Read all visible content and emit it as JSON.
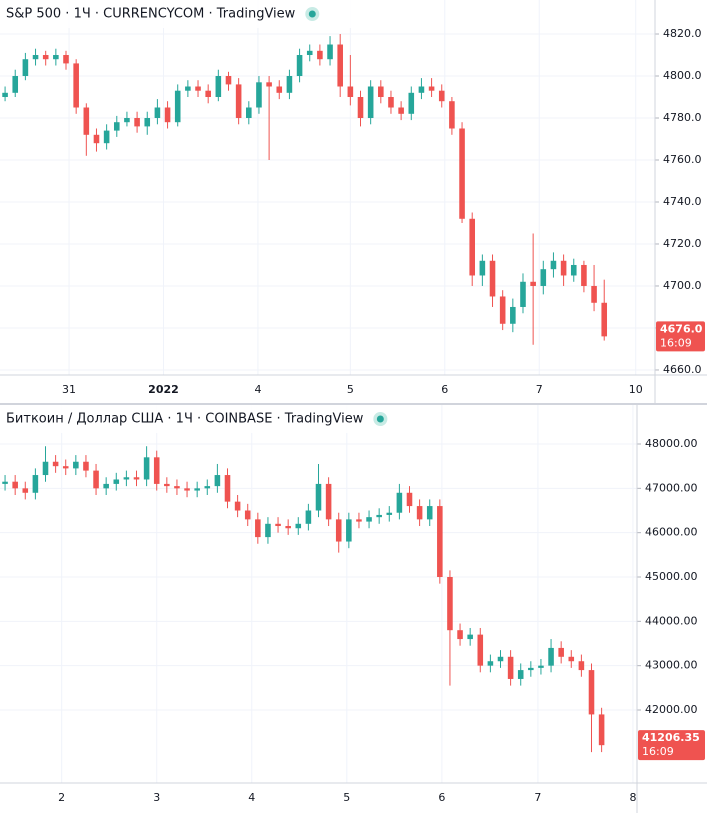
{
  "chart_data": [
    {
      "type": "candlestick",
      "title": "S&P 500 · 1Ч · CURRENCYCOM · TradingView",
      "up_color": "#26a69a",
      "down_color": "#ef5350",
      "grid": true,
      "xlim": [
        -0.5,
        64
      ],
      "xticks": [
        {
          "value": 6.3,
          "label": "31"
        },
        {
          "value": 15.6,
          "label": "2022"
        },
        {
          "value": 24.9,
          "label": "4"
        },
        {
          "value": 34.0,
          "label": "5"
        },
        {
          "value": 43.3,
          "label": "6"
        },
        {
          "value": 52.6,
          "label": "7"
        },
        {
          "value": 62.1,
          "label": "10"
        }
      ],
      "ylim": [
        4657.6,
        4836.2
      ],
      "yticks": [
        {
          "value": 4660,
          "label": "4660.0"
        },
        {
          "value": 4680,
          "label": "4680.0"
        },
        {
          "value": 4700,
          "label": "4700.0"
        },
        {
          "value": 4720,
          "label": "4720.0"
        },
        {
          "value": 4740,
          "label": "4740.0"
        },
        {
          "value": 4760,
          "label": "4760.0"
        },
        {
          "value": 4780,
          "label": "4780.0"
        },
        {
          "value": 4800,
          "label": "4800.0"
        },
        {
          "value": 4820,
          "label": "4820.0"
        }
      ],
      "open": [
        4790,
        4792,
        4800,
        4808,
        4810,
        4808,
        4810,
        4806,
        4785,
        4772,
        4768,
        4774,
        4778,
        4780,
        4776,
        4780,
        4785,
        4778,
        4793,
        4795,
        4793,
        4790,
        4800,
        4796,
        4780,
        4785,
        4797,
        4795,
        4792,
        4800,
        4810,
        4812,
        4808,
        4815,
        4795,
        4790,
        4780,
        4795,
        4790,
        4785,
        4782,
        4792,
        4795,
        4793,
        4788,
        4775,
        4732,
        4705,
        4712,
        4695,
        4682,
        4690,
        4702,
        4700,
        4708,
        4712,
        4705,
        4710,
        4700,
        4692
      ],
      "high": [
        4795,
        4803,
        4811,
        4813,
        4812,
        4813,
        4812,
        4808,
        4787,
        4775,
        4777,
        4781,
        4783,
        4783,
        4783,
        4789,
        4788,
        4796,
        4798,
        4798,
        4796,
        4803,
        4802,
        4799,
        4788,
        4800,
        4800,
        4798,
        4803,
        4813,
        4815,
        4815,
        4819,
        4820,
        4810,
        4793,
        4798,
        4798,
        4793,
        4788,
        4795,
        4799,
        4799,
        4796,
        4790,
        4778,
        4735,
        4715,
        4715,
        4698,
        4694,
        4706,
        4725,
        4712,
        4716,
        4715,
        4713,
        4712,
        4710,
        4703
      ],
      "low": [
        4788,
        4790,
        4798,
        4805,
        4805,
        4805,
        4803,
        4782,
        4762,
        4764,
        4765,
        4771,
        4776,
        4773,
        4772,
        4777,
        4775,
        4776,
        4790,
        4790,
        4787,
        4788,
        4793,
        4777,
        4777,
        4782,
        4760,
        4789,
        4789,
        4797,
        4807,
        4805,
        4805,
        4790,
        4786,
        4776,
        4777,
        4787,
        4782,
        4779,
        4779,
        4789,
        4790,
        4785,
        4772,
        4730,
        4700,
        4700,
        4690,
        4679,
        4678,
        4687,
        4672,
        4696,
        4704,
        4700,
        4702,
        4697,
        4688,
        4674
      ],
      "close": [
        4792,
        4800,
        4808,
        4810,
        4808,
        4810,
        4806,
        4785,
        4772,
        4768,
        4774,
        4778,
        4780,
        4776,
        4780,
        4785,
        4778,
        4793,
        4795,
        4793,
        4790,
        4800,
        4796,
        4780,
        4785,
        4797,
        4795,
        4792,
        4800,
        4810,
        4812,
        4808,
        4815,
        4795,
        4790,
        4780,
        4795,
        4790,
        4785,
        4782,
        4792,
        4795,
        4793,
        4788,
        4775,
        4732,
        4705,
        4712,
        4695,
        4682,
        4690,
        4702,
        4700,
        4708,
        4712,
        4705,
        4710,
        4700,
        4692,
        4676
      ],
      "last_price": {
        "value": 4676.0,
        "label": "4676.0"
      },
      "last_time": "16:09"
    },
    {
      "type": "candlestick",
      "title": "Биткоин / Доллар США · 1Ч · COINBASE · TradingView",
      "up_color": "#26a69a",
      "down_color": "#ef5350",
      "grid": true,
      "xlim": [
        -0.5,
        62.5
      ],
      "xticks": [
        {
          "value": 5.6,
          "label": "2"
        },
        {
          "value": 15.0,
          "label": "3"
        },
        {
          "value": 24.4,
          "label": "4"
        },
        {
          "value": 33.8,
          "label": "5"
        },
        {
          "value": 43.2,
          "label": "6"
        },
        {
          "value": 52.7,
          "label": "7"
        },
        {
          "value": 62.1,
          "label": "8"
        }
      ],
      "ylim": [
        40353,
        48880
      ],
      "yticks": [
        {
          "value": 42000,
          "label": "42000.00"
        },
        {
          "value": 43000,
          "label": "43000.00"
        },
        {
          "value": 44000,
          "label": "44000.00"
        },
        {
          "value": 45000,
          "label": "45000.00"
        },
        {
          "value": 46000,
          "label": "46000.00"
        },
        {
          "value": 47000,
          "label": "47000.00"
        },
        {
          "value": 48000,
          "label": "48000.00"
        }
      ],
      "open": [
        47100,
        47150,
        47000,
        46900,
        47300,
        47600,
        47500,
        47450,
        47600,
        47400,
        47000,
        47100,
        47200,
        47250,
        47200,
        47700,
        47100,
        47050,
        47000,
        46950,
        47000,
        47050,
        47300,
        46700,
        46500,
        46300,
        45900,
        46200,
        46150,
        46100,
        46200,
        46500,
        47100,
        46300,
        45800,
        46300,
        46250,
        46350,
        46400,
        46450,
        46900,
        46600,
        46300,
        46600,
        45000,
        43800,
        43600,
        43700,
        43000,
        43100,
        43200,
        42700,
        42900,
        42950,
        43000,
        43400,
        43200,
        43100,
        42900,
        41900
      ],
      "high": [
        47300,
        47300,
        47150,
        47450,
        47950,
        47750,
        47650,
        47750,
        47750,
        47550,
        47250,
        47350,
        47400,
        47400,
        47950,
        47850,
        47250,
        47200,
        47150,
        47150,
        47200,
        47550,
        47450,
        46850,
        46650,
        46450,
        46350,
        46350,
        46300,
        46350,
        46650,
        47550,
        47250,
        46450,
        46450,
        46450,
        46500,
        46550,
        46600,
        47100,
        47050,
        46750,
        46750,
        46750,
        45150,
        43950,
        43850,
        43850,
        43250,
        43350,
        43350,
        43050,
        43100,
        43150,
        43600,
        43550,
        43350,
        43250,
        43050,
        42050
      ],
      "low": [
        46950,
        46850,
        46750,
        46750,
        47150,
        47350,
        47300,
        47300,
        47250,
        46850,
        46850,
        46950,
        47050,
        47050,
        47050,
        46950,
        46900,
        46850,
        46800,
        46800,
        46850,
        46900,
        46550,
        46350,
        46150,
        45750,
        45750,
        46000,
        45950,
        45950,
        46050,
        46350,
        46150,
        45550,
        45650,
        46100,
        46100,
        46200,
        46250,
        46300,
        46450,
        46150,
        46150,
        44850,
        42550,
        43450,
        43450,
        42850,
        42850,
        42950,
        42550,
        42550,
        42750,
        42800,
        42850,
        43050,
        42950,
        42750,
        41050,
        41050
      ],
      "close": [
        47150,
        47000,
        46900,
        47300,
        47600,
        47500,
        47450,
        47600,
        47400,
        47000,
        47100,
        47200,
        47250,
        47200,
        47700,
        47100,
        47050,
        47000,
        46950,
        47000,
        47050,
        47300,
        46700,
        46500,
        46300,
        45900,
        46200,
        46150,
        46100,
        46200,
        46500,
        47100,
        46300,
        45800,
        46300,
        46250,
        46350,
        46400,
        46450,
        46900,
        46600,
        46300,
        46600,
        45000,
        43800,
        43600,
        43700,
        43000,
        43100,
        43200,
        42700,
        42900,
        42950,
        43000,
        43400,
        43200,
        43100,
        42900,
        41900,
        41206.35
      ],
      "last_price": {
        "value": 41206.35,
        "label": "41206.35"
      },
      "last_time": "16:09"
    }
  ]
}
